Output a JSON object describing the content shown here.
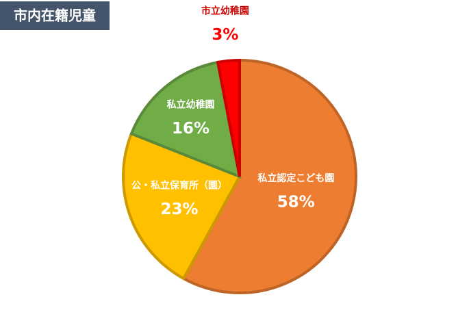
{
  "chart_data": {
    "type": "pie",
    "title": "市内在籍児童",
    "categories": [
      "私立認定こども園",
      "公・私立保育所（園）",
      "私立幼稚園",
      "市立幼稚園"
    ],
    "values": [
      58,
      23,
      16,
      3
    ],
    "value_labels": [
      "58%",
      "23%",
      "16%",
      "3%"
    ],
    "colors": [
      "#ed7d31",
      "#ffc000",
      "#70ad47",
      "#ff0000"
    ]
  }
}
